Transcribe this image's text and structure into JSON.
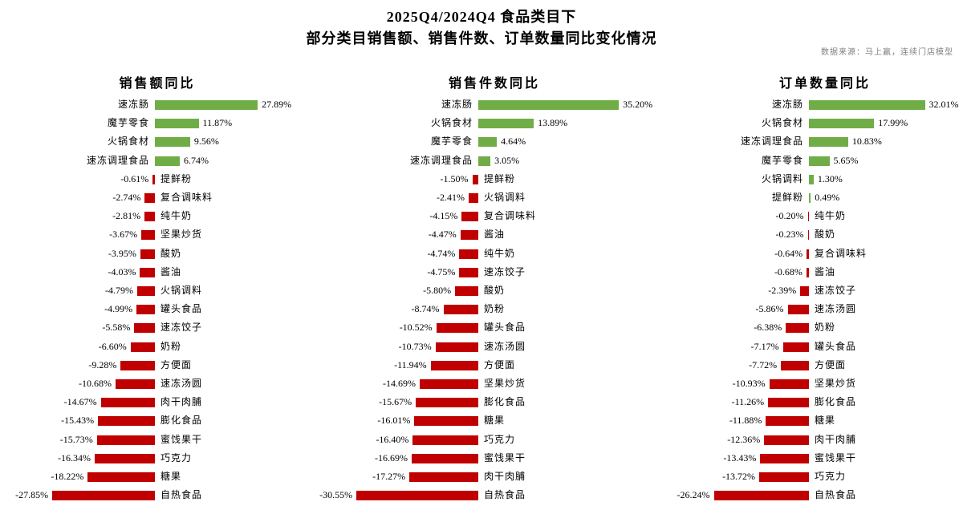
{
  "header": {
    "title": "2025Q4/2024Q4 食品类目下",
    "subtitle": "部分类目销售额、销售件数、订单数量同比变化情况",
    "source": "数据来源：马上赢，连续门店模型"
  },
  "colors": {
    "positive": "#70AD47",
    "negative": "#C00000",
    "source_text": "#808080",
    "text": "#000000"
  },
  "value_format": "0.00%",
  "chart_data": [
    {
      "type": "bar",
      "orientation": "horizontal",
      "title": "销售额同比",
      "unit": "%",
      "legend": "none",
      "grid": false,
      "categories": [
        "速冻肠",
        "魔芋零食",
        "火锅食材",
        "速冻调理食品",
        "提鲜粉",
        "复合调味料",
        "纯牛奶",
        "坚果炒货",
        "酸奶",
        "酱油",
        "火锅调料",
        "罐头食品",
        "速冻饺子",
        "奶粉",
        "方便面",
        "速冻汤圆",
        "肉干肉脯",
        "膨化食品",
        "蜜饯果干",
        "巧克力",
        "糖果",
        "自热食品"
      ],
      "values": [
        27.89,
        11.87,
        9.56,
        6.74,
        -0.61,
        -2.74,
        -2.81,
        -3.67,
        -3.95,
        -4.03,
        -4.79,
        -4.99,
        -5.58,
        -6.6,
        -9.28,
        -10.68,
        -14.67,
        -15.43,
        -15.73,
        -16.34,
        -18.22,
        -27.85
      ]
    },
    {
      "type": "bar",
      "orientation": "horizontal",
      "title": "销售件数同比",
      "unit": "%",
      "legend": "none",
      "grid": false,
      "categories": [
        "速冻肠",
        "火锅食材",
        "魔芋零食",
        "速冻调理食品",
        "提鲜粉",
        "火锅调料",
        "复合调味料",
        "酱油",
        "纯牛奶",
        "速冻饺子",
        "酸奶",
        "奶粉",
        "罐头食品",
        "速冻汤圆",
        "方便面",
        "坚果炒货",
        "膨化食品",
        "糖果",
        "巧克力",
        "蜜饯果干",
        "肉干肉脯",
        "自热食品"
      ],
      "values": [
        35.2,
        13.89,
        4.64,
        3.05,
        -1.5,
        -2.41,
        -4.15,
        -4.47,
        -4.74,
        -4.75,
        -5.8,
        -8.74,
        -10.52,
        -10.73,
        -11.94,
        -14.69,
        -15.67,
        -16.01,
        -16.4,
        -16.69,
        -17.27,
        -30.55
      ]
    },
    {
      "type": "bar",
      "orientation": "horizontal",
      "title": "订单数量同比",
      "unit": "%",
      "legend": "none",
      "grid": false,
      "categories": [
        "速冻肠",
        "火锅食材",
        "速冻调理食品",
        "魔芋零食",
        "火锅调料",
        "提鲜粉",
        "纯牛奶",
        "酸奶",
        "复合调味料",
        "酱油",
        "速冻饺子",
        "速冻汤圆",
        "奶粉",
        "罐头食品",
        "方便面",
        "坚果炒货",
        "膨化食品",
        "糖果",
        "肉干肉脯",
        "蜜饯果干",
        "巧克力",
        "自热食品"
      ],
      "values": [
        32.01,
        17.99,
        10.83,
        5.65,
        1.3,
        0.49,
        -0.2,
        -0.23,
        -0.64,
        -0.68,
        -2.39,
        -5.86,
        -6.38,
        -7.17,
        -7.72,
        -10.93,
        -11.26,
        -11.88,
        -12.36,
        -13.43,
        -13.72,
        -26.24
      ]
    }
  ]
}
